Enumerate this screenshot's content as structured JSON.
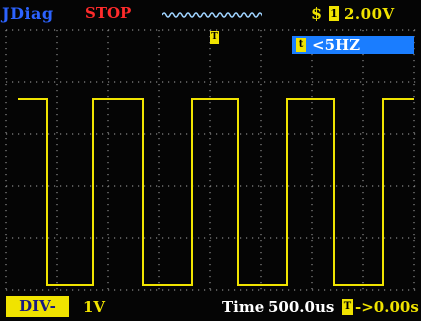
{
  "header": {
    "app_name": "JDiag",
    "run_state": "STOP",
    "trigger_edge_symbol": "$",
    "channel_tag": "1",
    "volts_per_div": "2.00V"
  },
  "measurement": {
    "frequency_tag": "t",
    "frequency": "<5HZ"
  },
  "trigger_marker": {
    "tag": "T"
  },
  "footer": {
    "div_button_label": "DIV-",
    "div_value": "1V",
    "time_label": "Time",
    "time_per_div": "500.0us",
    "offset_tag": "T",
    "offset_value": "->0.00s"
  },
  "colors": {
    "trace": "#f0e300",
    "grid": "#8a8a8a",
    "app_name": "#2c63ff",
    "stop": "#ff2b2b",
    "trigger_wave": "#9fd3ff",
    "freq_panel": "#1a7dff",
    "background": "#050505"
  },
  "waveform": {
    "type": "square",
    "periods_shown": 4
  }
}
